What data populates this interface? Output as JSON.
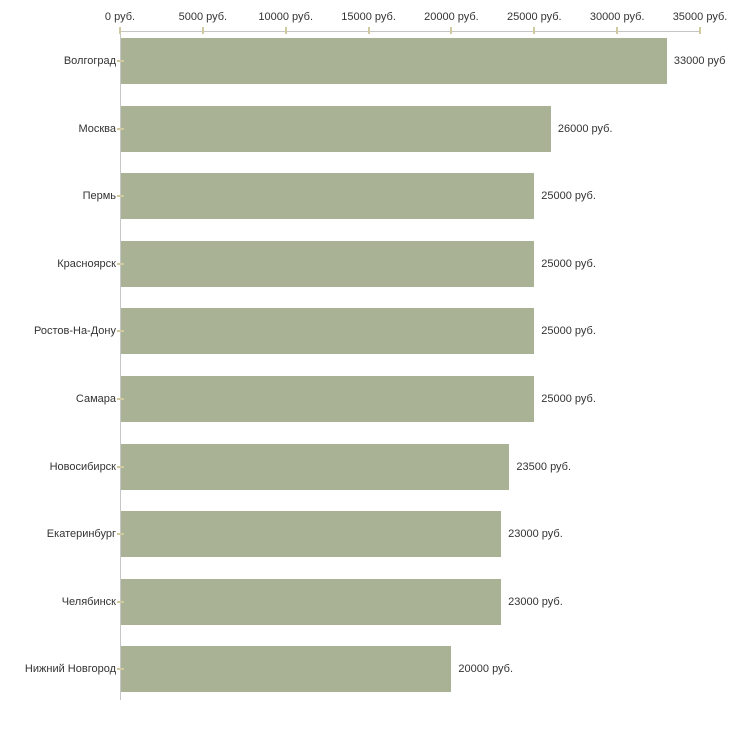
{
  "chart_data": {
    "type": "bar",
    "orientation": "horizontal",
    "title": "",
    "xlabel": "",
    "ylabel": "",
    "xlim": [
      0,
      35000
    ],
    "grid": false,
    "legend": null,
    "categories": [
      "Волгоград",
      "Москва",
      "Пермь",
      "Красноярск",
      "Ростов-На-Дону",
      "Самара",
      "Новосибирск",
      "Екатеринбург",
      "Челябинск",
      "Нижний Новгород"
    ],
    "values": [
      33000,
      26000,
      25000,
      25000,
      25000,
      25000,
      23500,
      23000,
      23000,
      20000
    ],
    "value_labels": [
      "33000 руб",
      "26000 руб.",
      "25000 руб.",
      "25000 руб.",
      "25000 руб.",
      "25000 руб.",
      "23500 руб.",
      "23000 руб.",
      "23000 руб.",
      "20000 руб."
    ],
    "x_tick_values": [
      0,
      5000,
      10000,
      15000,
      20000,
      25000,
      30000,
      35000
    ],
    "x_tick_labels": [
      "0 руб.",
      "5000 руб.",
      "10000 руб.",
      "15000 руб.",
      "20000 руб.",
      "25000 руб.",
      "30000 руб.",
      "35000 руб."
    ],
    "colors": {
      "bar": "#a9b294",
      "axis_line": "#c6c6c6",
      "tick_mark": "#cfcaa0",
      "text": "#333333"
    }
  }
}
